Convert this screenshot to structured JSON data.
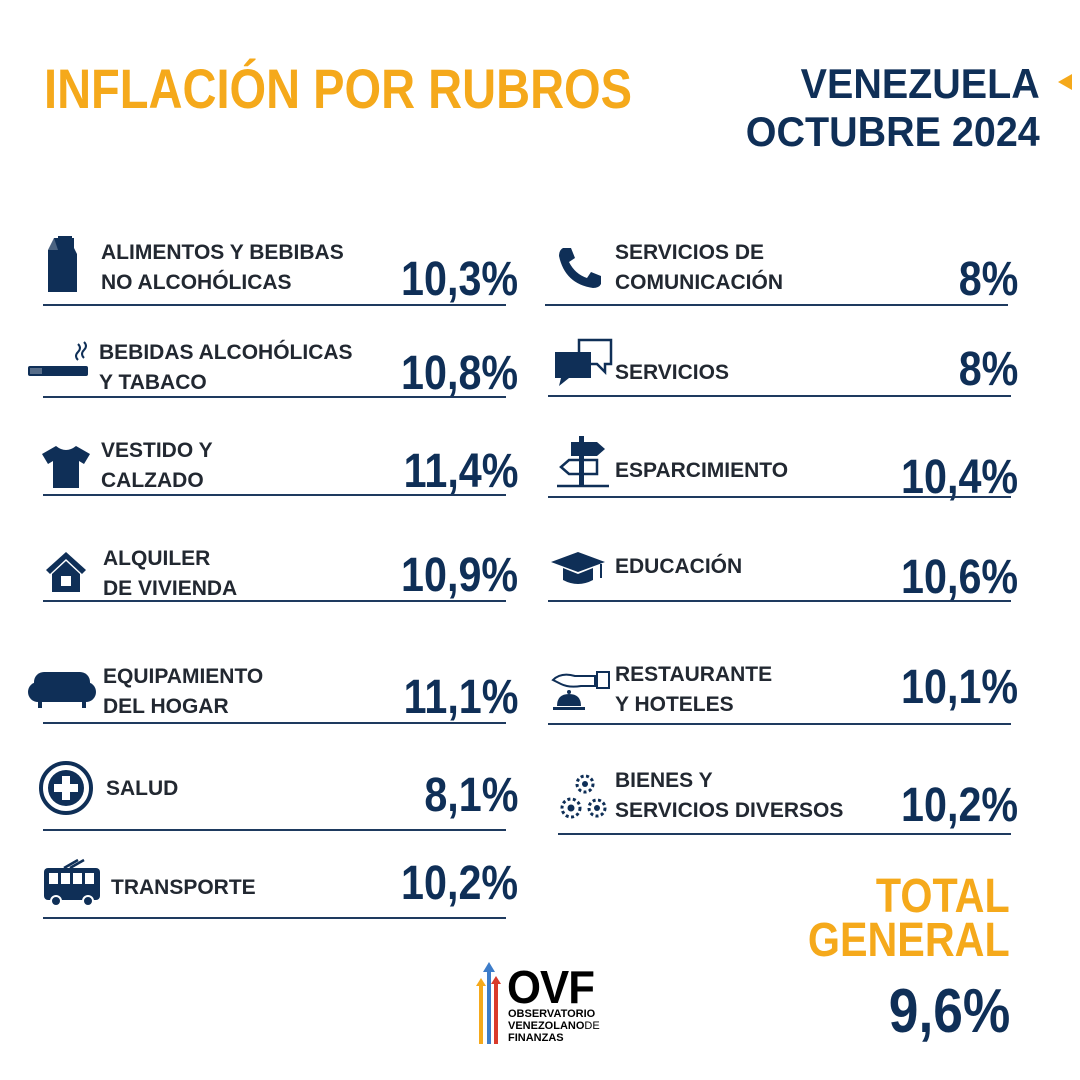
{
  "header": {
    "title": "INFLACIÓN POR RUBROS",
    "country": "VENEZUELA",
    "period": "OCTUBRE 2024"
  },
  "colors": {
    "accent": "#F5A91B",
    "navy": "#0F2F57",
    "text": "#222831"
  },
  "left_items": [
    {
      "line1": "ALIMENTOS Y BEBIBAS",
      "line2": "NO ALCOHÓLICAS",
      "value": "10,3%",
      "icon": "milk-carton-icon"
    },
    {
      "line1": "BEBIDAS ALCOHÓLICAS",
      "line2": "Y TABACO",
      "value": "10,8%",
      "icon": "cigarette-icon"
    },
    {
      "line1": "VESTIDO Y",
      "line2": "CALZADO",
      "value": "11,4%",
      "icon": "tshirt-icon"
    },
    {
      "line1": "ALQUILER",
      "line2": "DE VIVIENDA",
      "value": "10,9%",
      "icon": "house-icon"
    },
    {
      "line1": "EQUIPAMIENTO",
      "line2": "DEL HOGAR",
      "value": "11,1%",
      "icon": "sofa-icon"
    },
    {
      "line1": "SALUD",
      "line2": "",
      "value": "8,1%",
      "icon": "medical-cross-icon"
    },
    {
      "line1": "TRANSPORTE",
      "line2": "",
      "value": "10,2%",
      "icon": "trolleybus-icon"
    }
  ],
  "right_items": [
    {
      "line1": "SERVICIOS DE",
      "line2": "COMUNICACIÓN",
      "value": "8%",
      "icon": "phone-icon"
    },
    {
      "line1": "SERVICIOS",
      "line2": "",
      "value": "8%",
      "icon": "chat-bubbles-icon"
    },
    {
      "line1": "ESPARCIMIENTO",
      "line2": "",
      "value": "10,4%",
      "icon": "signpost-icon"
    },
    {
      "line1": "EDUCACIÓN",
      "line2": "",
      "value": "10,6%",
      "icon": "graduation-cap-icon"
    },
    {
      "line1": "RESTAURANTE",
      "line2": "Y HOTELES",
      "value": "10,1%",
      "icon": "service-bell-icon"
    },
    {
      "line1": "BIENES Y",
      "line2": "SERVICIOS DIVERSOS",
      "value": "10,2%",
      "icon": "gears-icon"
    }
  ],
  "total": {
    "label_line1": "TOTAL",
    "label_line2": "GENERAL",
    "value": "9,6%"
  },
  "logo": {
    "name": "OVF",
    "line1": "OBSERVATORIO",
    "line2": "VENEZOLANO",
    "line2_suffix": "DE",
    "line3": "FINANZAS"
  }
}
